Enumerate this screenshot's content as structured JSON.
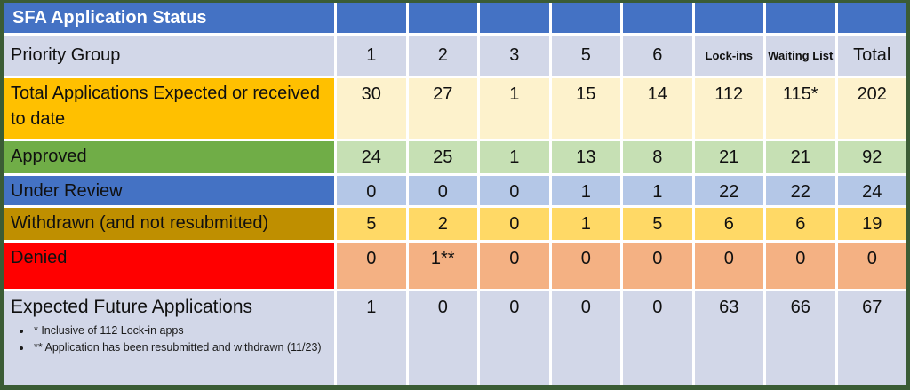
{
  "colors": {
    "header_blue": "#4472C4",
    "band_lavender": "#D2D7E8",
    "gold": "#FFC000",
    "cream": "#FDF2CC",
    "green": "#70AD47",
    "light_green": "#C6E0B4",
    "light_blue": "#B4C7E7",
    "dark_gold": "#BF8F00",
    "yellow": "#FFD966",
    "red": "#FF0000",
    "orange_peach": "#F4B183",
    "outer_border_green": "#3B5C35",
    "title_text": "#FFFFFF",
    "body_text": "#101010"
  },
  "chart_data": {
    "type": "table",
    "title": "SFA Application Status",
    "column_header_label": "Priority Group",
    "columns": [
      "1",
      "2",
      "3",
      "5",
      "6",
      "Lock-ins",
      "Waiting List",
      "Total"
    ],
    "rows": [
      {
        "label": "Total Applications Expected or received to date",
        "values": [
          "30",
          "27",
          "1",
          "15",
          "14",
          "112",
          "115*",
          "202"
        ]
      },
      {
        "label": "Approved",
        "values": [
          "24",
          "25",
          "1",
          "13",
          "8",
          "21",
          "21",
          "92"
        ]
      },
      {
        "label": "Under Review",
        "values": [
          "0",
          "0",
          "0",
          "1",
          "1",
          "22",
          "22",
          "24"
        ]
      },
      {
        "label": "Withdrawn (and not resubmitted)",
        "values": [
          "5",
          "2",
          "0",
          "1",
          "5",
          "6",
          "6",
          "19"
        ]
      },
      {
        "label": "Denied",
        "values": [
          "0",
          "1**",
          "0",
          "0",
          "0",
          "0",
          "0",
          "0"
        ]
      },
      {
        "label": "Expected Future Applications",
        "values": [
          "1",
          "0",
          "0",
          "0",
          "0",
          "63",
          "66",
          "67"
        ]
      }
    ],
    "footnotes": [
      "* Inclusive of 112 Lock-in apps",
      "** Application has been resubmitted and withdrawn (11/23)"
    ]
  }
}
